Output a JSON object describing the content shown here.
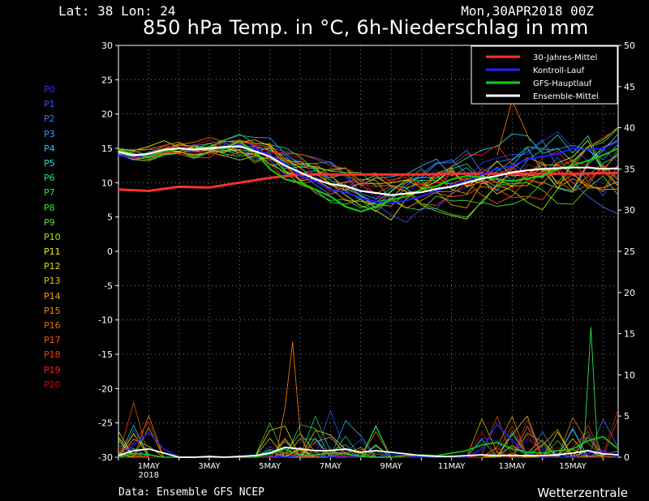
{
  "header": {
    "location": "Lat: 38 Lon: 24",
    "run_date": "Mon,30APR2018 00Z",
    "title": "850 hPa Temp. in °C, 6h-Niederschlag in mm",
    "source": "Data: Ensemble GFS NCEP",
    "brand": "Wetterzentrale"
  },
  "members": [
    {
      "label": "P0",
      "color": "#3030ff"
    },
    {
      "label": "P1",
      "color": "#3a50ff"
    },
    {
      "label": "P2",
      "color": "#3c78ff"
    },
    {
      "label": "P3",
      "color": "#2f9cff"
    },
    {
      "label": "P4",
      "color": "#28c0ff"
    },
    {
      "label": "P5",
      "color": "#20e0d8"
    },
    {
      "label": "P6",
      "color": "#20e090"
    },
    {
      "label": "P7",
      "color": "#30e050"
    },
    {
      "label": "P8",
      "color": "#40e030"
    },
    {
      "label": "P9",
      "color": "#60e020"
    },
    {
      "label": "P10",
      "color": "#a0f010"
    },
    {
      "label": "P11",
      "color": "#f0f000"
    },
    {
      "label": "P12",
      "color": "#f0d800"
    },
    {
      "label": "P13",
      "color": "#f0c000"
    },
    {
      "label": "P14",
      "color": "#f0a000"
    },
    {
      "label": "P15",
      "color": "#f08a00"
    },
    {
      "label": "P16",
      "color": "#f07000"
    },
    {
      "label": "P17",
      "color": "#f05800"
    },
    {
      "label": "P18",
      "color": "#f04000"
    },
    {
      "label": "P19",
      "color": "#f02020"
    },
    {
      "label": "P20",
      "color": "#e00000"
    }
  ],
  "chart_data": {
    "type": "line",
    "title": "850 hPa Temp. in °C, 6h-Niederschlag in mm",
    "x_unit": "days since 30APR2018 00Z",
    "xlim": [
      0,
      16.5
    ],
    "ylim_left": [
      -30,
      30
    ],
    "ylim_right": [
      0,
      50
    ],
    "left_ticks": [
      30,
      25,
      20,
      15,
      10,
      5,
      0,
      -5,
      -10,
      -15,
      -20,
      -25,
      -30
    ],
    "right_ticks": [
      50,
      45,
      40,
      35,
      30,
      25,
      20,
      15,
      10,
      5,
      0
    ],
    "x_ticks": [
      {
        "x": 1,
        "label": "1MAY",
        "sub": "2018"
      },
      {
        "x": 3,
        "label": "3MAY",
        "sub": ""
      },
      {
        "x": 5,
        "label": "5MAY",
        "sub": ""
      },
      {
        "x": 7,
        "label": "7MAY",
        "sub": ""
      },
      {
        "x": 9,
        "label": "9MAY",
        "sub": ""
      },
      {
        "x": 11,
        "label": "11MAY",
        "sub": ""
      },
      {
        "x": 13,
        "label": "13MAY",
        "sub": ""
      },
      {
        "x": 15,
        "label": "15MAY",
        "sub": ""
      }
    ],
    "grid": true,
    "legend_position": "top-right",
    "legend": [
      {
        "name": "30-Jahres-Mittel",
        "color": "#ff3030"
      },
      {
        "name": "Kontroll-Lauf",
        "color": "#2020ff"
      },
      {
        "name": "GFS-Hauptlauf",
        "color": "#10d010"
      },
      {
        "name": "Ensemble-Mittel",
        "color": "#ffffff"
      }
    ],
    "climate_mean": {
      "x": [
        0,
        1,
        2,
        3,
        4,
        5,
        6,
        7,
        8,
        9,
        10,
        11,
        12,
        13,
        14,
        15,
        16.5
      ],
      "y": [
        9.0,
        8.8,
        9.4,
        9.3,
        10.0,
        10.7,
        11.2,
        11.2,
        11.2,
        11.2,
        11.2,
        11.3,
        11.3,
        11.3,
        11.3,
        11.3,
        11.4
      ]
    },
    "ensemble_mean_temp": {
      "x": [
        0,
        0.5,
        1,
        1.5,
        2,
        2.5,
        3,
        3.5,
        4,
        4.5,
        5,
        5.5,
        6,
        6.5,
        7,
        7.5,
        8,
        8.5,
        9,
        9.5,
        10,
        10.5,
        11,
        11.5,
        12,
        12.5,
        13,
        13.5,
        14,
        14.5,
        15,
        15.5,
        16,
        16.5
      ],
      "y": [
        14.5,
        14.0,
        14.2,
        14.8,
        15.0,
        14.8,
        15.0,
        15.2,
        15.3,
        14.6,
        13.8,
        12.5,
        11.5,
        10.5,
        9.8,
        9.5,
        8.8,
        8.5,
        8.2,
        8.4,
        8.6,
        9.1,
        9.4,
        10.0,
        10.6,
        11.0,
        11.5,
        11.8,
        12.0,
        12.1,
        12.2,
        12.2,
        12.0,
        12.1
      ]
    },
    "control_temp": {
      "x": [
        0,
        0.5,
        1,
        1.5,
        2,
        2.5,
        3,
        3.5,
        4,
        4.5,
        5,
        5.5,
        6,
        6.5,
        7,
        7.5,
        8,
        8.5,
        9,
        9.5,
        10,
        10.5,
        11,
        11.5,
        12,
        12.5,
        13,
        13.5,
        14,
        14.5,
        15,
        15.5,
        16,
        16.5
      ],
      "y": [
        14.0,
        13.6,
        14.0,
        14.6,
        15.0,
        14.7,
        15.2,
        15.0,
        15.6,
        15.0,
        14.0,
        12.8,
        11.0,
        10.2,
        9.0,
        8.6,
        7.8,
        7.2,
        7.0,
        7.4,
        8.0,
        8.8,
        9.6,
        10.2,
        11.2,
        12.0,
        12.4,
        13.4,
        13.8,
        14.2,
        15.0,
        14.8,
        15.0,
        16.0
      ]
    },
    "gfs_temp": {
      "x": [
        0,
        0.5,
        1,
        1.5,
        2,
        2.5,
        3,
        3.5,
        4,
        4.5,
        5,
        5.5,
        6,
        6.5,
        7,
        7.5,
        8,
        8.5,
        9,
        9.5,
        10,
        10.5,
        11,
        11.5,
        12,
        12.5,
        13,
        13.5,
        14,
        14.5,
        15,
        15.5,
        16,
        16.5
      ],
      "y": [
        14.8,
        14.2,
        13.8,
        14.6,
        15.0,
        14.8,
        15.2,
        15.0,
        16.0,
        14.5,
        12.0,
        10.5,
        10.0,
        9.0,
        8.0,
        6.5,
        5.8,
        6.5,
        7.5,
        8.0,
        9.0,
        9.5,
        10.5,
        11.0,
        10.8,
        10.5,
        10.2,
        10.6,
        11.0,
        12.0,
        12.5,
        13.2,
        14.0,
        15.0
      ]
    },
    "ensemble_mean_precip": {
      "x": [
        0,
        0.5,
        1,
        1.5,
        2,
        2.5,
        3,
        3.5,
        4,
        4.5,
        5,
        5.5,
        6,
        6.5,
        7,
        7.5,
        8,
        8.5,
        9,
        9.5,
        10,
        10.5,
        11,
        11.5,
        12,
        12.5,
        13,
        13.5,
        14,
        14.5,
        15,
        15.5,
        16,
        16.5
      ],
      "y": [
        0.2,
        0.8,
        1.0,
        0.5,
        0.0,
        0.0,
        0.1,
        0.0,
        0.1,
        0.2,
        0.5,
        1.2,
        1.0,
        0.8,
        0.8,
        1.0,
        0.6,
        0.8,
        0.6,
        0.4,
        0.2,
        0.1,
        0.1,
        0.2,
        0.3,
        0.2,
        0.2,
        0.2,
        0.2,
        0.3,
        0.5,
        0.8,
        0.4,
        0.3
      ]
    },
    "gfs_precip": {
      "x": [
        0,
        0.5,
        1,
        1.5,
        2,
        2.5,
        3,
        3.5,
        4,
        4.5,
        5,
        5.5,
        6,
        6.5,
        7,
        7.5,
        8,
        8.5,
        9,
        9.5,
        10,
        10.5,
        11,
        11.5,
        12,
        12.5,
        13,
        13.5,
        14,
        14.5,
        15,
        15.5,
        16,
        16.5
      ],
      "y": [
        0.0,
        0.5,
        0.3,
        0.0,
        0.0,
        0.0,
        0.0,
        0.0,
        0.0,
        0.0,
        0.4,
        1.0,
        0.2,
        0.3,
        0.5,
        0.4,
        0.1,
        0.0,
        0.0,
        0.2,
        0.3,
        0.2,
        0.5,
        0.8,
        1.5,
        1.8,
        1.0,
        0.6,
        0.5,
        0.8,
        1.0,
        2.0,
        2.5,
        1.0
      ]
    },
    "control_precip": {
      "x": [
        0,
        0.5,
        1,
        1.5,
        2,
        2.5,
        3,
        3.5,
        4,
        4.5,
        5,
        5.5,
        6,
        6.5,
        7,
        7.5,
        8,
        8.5,
        9,
        9.5,
        10,
        10.5,
        11,
        11.5,
        12,
        12.5,
        13,
        13.5,
        14,
        14.5,
        15,
        15.5,
        16,
        16.5
      ],
      "y": [
        0.0,
        1.5,
        3.0,
        1.0,
        0.0,
        0.0,
        0.0,
        0.0,
        0.0,
        0.3,
        0.2,
        0.0,
        0.2,
        0.3,
        0.0,
        0.2,
        0.0,
        0.0,
        0.3,
        0.2,
        0.0,
        0.0,
        0.0,
        0.0,
        1.0,
        4.0,
        2.0,
        0.5,
        0.0,
        0.0,
        0.0,
        0.5,
        0.8,
        0.0
      ]
    }
  }
}
